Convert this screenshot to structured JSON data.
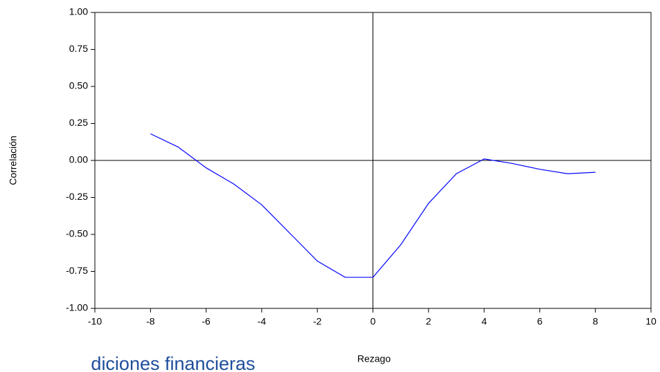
{
  "chart_data": {
    "type": "line",
    "x_label": "Rezago",
    "y_label": "Correlación",
    "x": [
      -8,
      -7,
      -6,
      -5,
      -4,
      -3,
      -2,
      -1,
      0,
      1,
      2,
      3,
      4,
      5,
      6,
      7,
      8
    ],
    "series": [
      {
        "color": "#0000ff",
        "values": [
          0.18,
          0.09,
          -0.05,
          -0.16,
          -0.3,
          -0.49,
          -0.68,
          -0.79,
          -0.79,
          -0.57,
          -0.29,
          -0.09,
          0.01,
          -0.02,
          -0.06,
          -0.09,
          -0.08
        ]
      }
    ],
    "xlim": [
      -10,
      10
    ],
    "xticks": [
      -10,
      -8,
      -6,
      -4,
      -2,
      0,
      2,
      4,
      6,
      8,
      10
    ],
    "ylim": [
      -1,
      1
    ],
    "yticks": [
      {
        "value": -1,
        "label": "-1.00"
      },
      {
        "value": -0.75,
        "label": "-0.75"
      },
      {
        "value": -0.5,
        "label": "-0.50"
      },
      {
        "value": -0.25,
        "label": "-0.25"
      },
      {
        "value": 0,
        "label": "0.00"
      },
      {
        "value": 0.25,
        "label": "0.25"
      },
      {
        "value": 0.5,
        "label": "0.50"
      },
      {
        "value": 0.75,
        "label": "0.75"
      },
      {
        "value": 1,
        "label": "1.00"
      }
    ],
    "zero_lines": true
  },
  "fragment_text": "diciones financieras"
}
